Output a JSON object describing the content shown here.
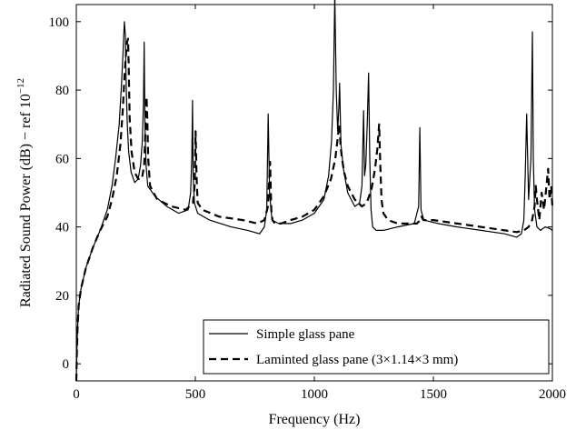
{
  "chart_data": {
    "type": "line",
    "title": "",
    "xlabel": "Frequency (Hz)",
    "ylabel_main": "Radiated Sound Power  (dB) − ref 10",
    "ylabel_sup": "−12",
    "xlim": [
      0,
      2000
    ],
    "ylim": [
      -5,
      105
    ],
    "x_ticks": [
      0,
      500,
      1000,
      1500,
      2000
    ],
    "y_ticks": [
      0,
      20,
      40,
      60,
      80,
      100
    ],
    "grid": false,
    "legend_position": "bottom-right",
    "series": [
      {
        "name": "Simple glass pane",
        "style": "solid",
        "color": "#000000",
        "x": [
          0,
          2,
          5,
          10,
          20,
          40,
          70,
          100,
          130,
          150,
          165,
          180,
          190,
          197,
          202,
          206,
          210,
          214,
          220,
          230,
          245,
          260,
          270,
          277,
          282,
          285,
          288,
          293,
          300,
          330,
          380,
          430,
          470,
          480,
          485,
          488,
          491,
          496,
          510,
          560,
          650,
          720,
          770,
          790,
          800,
          806,
          812,
          822,
          850,
          900,
          950,
          1000,
          1040,
          1060,
          1072,
          1080,
          1086,
          1092,
          1098,
          1103,
          1106,
          1112,
          1122,
          1140,
          1170,
          1190,
          1200,
          1207,
          1211,
          1216,
          1222,
          1228,
          1233,
          1238,
          1245,
          1260,
          1290,
          1350,
          1420,
          1438,
          1443,
          1448,
          1460,
          1520,
          1600,
          1700,
          1800,
          1850,
          1870,
          1880,
          1886,
          1892,
          1900,
          1910,
          1916,
          1920,
          1925,
          1935,
          1950,
          1970,
          1990,
          2000
        ],
        "y": [
          -5,
          2,
          10,
          17,
          22,
          28,
          34,
          39,
          45,
          52,
          60,
          70,
          82,
          92,
          100,
          96,
          80,
          70,
          62,
          56,
          53,
          54,
          58,
          65,
          76,
          94,
          70,
          58,
          52,
          49,
          46,
          44,
          45,
          50,
          60,
          77,
          55,
          47,
          44,
          42,
          40,
          39,
          38,
          40,
          45,
          73,
          50,
          42,
          41,
          41,
          42,
          44,
          48,
          55,
          65,
          80,
          108,
          80,
          68,
          75,
          82,
          64,
          57,
          50,
          46,
          47,
          52,
          74,
          55,
          58,
          70,
          85,
          60,
          45,
          40,
          39,
          39,
          40,
          41,
          46,
          69,
          45,
          42,
          41,
          40,
          39,
          38,
          37,
          38,
          42,
          55,
          73,
          48,
          60,
          97,
          60,
          45,
          40,
          39,
          40,
          39.5,
          39
        ]
      },
      {
        "name": "Laminted glass pane (3×1.14×3 mm)",
        "style": "dashed",
        "color": "#000000",
        "x": [
          0,
          2,
          5,
          10,
          20,
          40,
          70,
          100,
          130,
          150,
          170,
          185,
          195,
          203,
          208,
          213,
          217,
          220,
          224,
          232,
          245,
          260,
          275,
          285,
          290,
          295,
          298,
          302,
          310,
          340,
          400,
          460,
          490,
          497,
          501,
          505,
          510,
          530,
          600,
          700,
          760,
          790,
          805,
          814,
          819,
          824,
          835,
          860,
          900,
          950,
          1000,
          1040,
          1070,
          1088,
          1098,
          1105,
          1110,
          1116,
          1125,
          1140,
          1170,
          1200,
          1220,
          1240,
          1255,
          1265,
          1272,
          1277,
          1282,
          1290,
          1310,
          1350,
          1400,
          1430,
          1445,
          1450,
          1458,
          1500,
          1600,
          1700,
          1800,
          1850,
          1880,
          1900,
          1915,
          1925,
          1930,
          1935,
          1945,
          1955,
          1965,
          1975,
          1982,
          1988,
          1995,
          2000
        ],
        "y": [
          -5,
          2,
          10,
          17,
          22,
          28,
          34,
          39,
          43,
          48,
          55,
          64,
          74,
          85,
          90,
          94,
          95,
          88,
          72,
          62,
          56,
          54,
          54,
          58,
          68,
          78,
          72,
          60,
          52,
          48,
          46,
          45,
          47,
          52,
          68,
          55,
          47,
          45,
          43,
          42,
          41,
          42,
          46,
          59,
          45,
          42,
          41,
          41,
          42,
          43,
          45,
          49,
          54,
          60,
          66,
          70,
          64,
          60,
          56,
          52,
          48,
          46,
          47,
          51,
          57,
          63,
          70,
          58,
          48,
          44,
          42,
          41,
          41,
          41,
          42,
          43,
          42,
          42,
          41,
          40,
          39,
          38.5,
          39,
          40,
          42,
          46,
          52,
          48,
          42,
          50,
          45,
          52,
          57,
          48,
          52,
          46
        ]
      }
    ]
  }
}
